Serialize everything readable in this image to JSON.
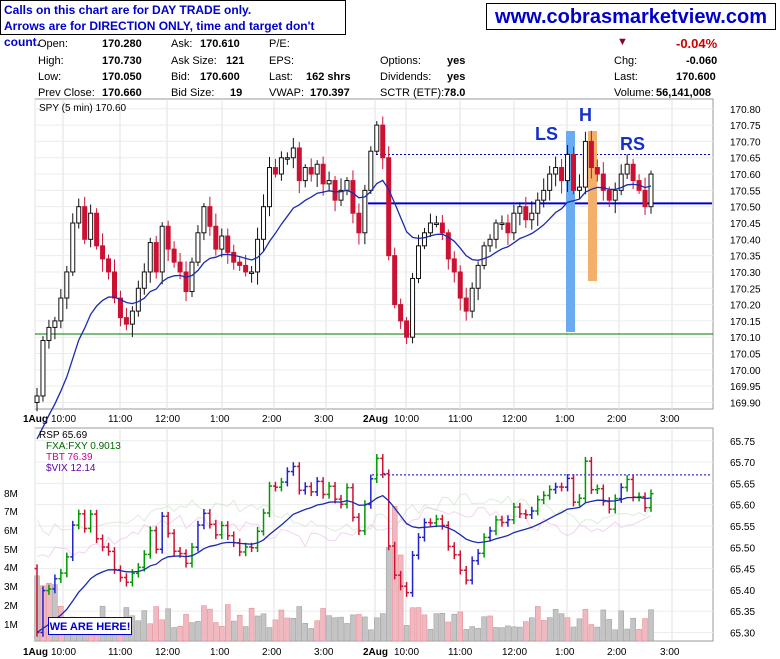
{
  "header": {
    "note_line1": "Calls on this chart are for DAY TRADE only.",
    "note_line2": "Arrows are for DIRECTION ONLY, time and target don't count.",
    "website": "www.cobrasmarketview.com"
  },
  "quote": {
    "open_label": "Open:",
    "open": "170.280",
    "high_label": "High:",
    "high": "170.730",
    "low_label": "Low:",
    "low": "170.050",
    "prev_close_label": "Prev Close:",
    "prev_close": "170.660",
    "ask_label": "Ask:",
    "ask": "170.610",
    "ask_size_label": "Ask Size:",
    "ask_size": "121",
    "bid_label": "Bid:",
    "bid": "170.600",
    "bid_size_label": "Bid Size:",
    "bid_size": "19",
    "pe_label": "P/E:",
    "eps_label": "EPS:",
    "last_label": "Last:",
    "last_shares": "162 shrs",
    "vwap_label": "VWAP:",
    "vwap": "170.397",
    "options_label": "Options:",
    "options": "yes",
    "dividends_label": "Dividends:",
    "dividends": "yes",
    "sctr_label": "SCTR (ETF):",
    "sctr": "78.0",
    "pct_change": "-0.04%",
    "chg_label": "Chg:",
    "chg": "-0.060",
    "last2_label": "Last:",
    "last": "170.600",
    "volume_label": "Volume:",
    "volume": "56,141,008"
  },
  "colors": {
    "up": "#111111",
    "down": "#cc1133",
    "ma": "#1a2bb0",
    "line_blue": "#0000cc",
    "support": "#007700",
    "ls_bar": "#6aaaf0",
    "h_bar": "#f3b06a"
  },
  "here_label": "WE ARE HERE!",
  "chart_data": [
    {
      "type": "candlestick",
      "title": "SPY (5 min) 170.60",
      "x_ticks": [
        "1Aug",
        "10:00",
        "11:00",
        "12:00",
        "1:00",
        "2:00",
        "3:00",
        "2Aug",
        "10:00",
        "11:00",
        "12:00",
        "1:00",
        "2:00",
        "3:00"
      ],
      "y_ticks": [
        170.8,
        170.75,
        170.7,
        170.65,
        170.6,
        170.55,
        170.5,
        170.45,
        170.4,
        170.35,
        170.3,
        170.25,
        170.2,
        170.15,
        170.1,
        170.05,
        170.0,
        169.95,
        169.9
      ],
      "ylim": [
        169.88,
        170.83
      ],
      "pattern_labels": [
        "LS",
        "H",
        "RS"
      ],
      "neckline": 170.51,
      "resistance": 170.66,
      "support": 170.11,
      "closes": [
        169.92,
        170.09,
        170.13,
        170.15,
        170.22,
        170.3,
        170.45,
        170.5,
        170.4,
        170.48,
        170.38,
        170.34,
        170.3,
        170.22,
        170.16,
        170.14,
        170.18,
        170.25,
        170.3,
        170.39,
        170.3,
        170.44,
        170.37,
        170.33,
        170.3,
        170.24,
        170.33,
        170.42,
        170.5,
        170.44,
        170.37,
        170.41,
        170.36,
        170.33,
        170.32,
        170.3,
        170.3,
        170.4,
        170.5,
        170.62,
        170.6,
        170.65,
        170.65,
        170.68,
        170.58,
        170.62,
        170.6,
        170.63,
        170.57,
        170.58,
        170.52,
        170.55,
        170.58,
        170.48,
        170.42,
        170.55,
        170.67,
        170.75,
        170.65,
        170.35,
        170.2,
        170.15,
        170.1,
        170.28,
        170.38,
        170.42,
        170.45,
        170.45,
        170.42,
        170.34,
        170.3,
        170.22,
        170.18,
        170.25,
        170.32,
        170.38,
        170.4,
        170.45,
        170.45,
        170.42,
        170.48,
        170.5,
        170.46,
        170.48,
        170.52,
        170.55,
        170.6,
        170.62,
        170.58,
        170.66,
        170.55,
        170.56,
        170.7,
        170.62,
        170.6,
        170.55,
        170.52,
        170.55,
        170.6,
        170.63,
        170.58,
        170.55,
        170.5,
        170.6
      ]
    },
    {
      "type": "candlestick",
      "title": "RSP 65.69",
      "legend": [
        "FXA:FXY 0.9013",
        "TBT 76.39",
        "$VIX 12.14"
      ],
      "x_ticks": [
        "1Aug",
        "10:00",
        "11:00",
        "12:00",
        "1:00",
        "2:00",
        "3:00",
        "2Aug",
        "10:00",
        "11:00",
        "12:00",
        "1:00",
        "2:00",
        "3:00"
      ],
      "y_ticks": [
        65.75,
        65.7,
        65.65,
        65.6,
        65.55,
        65.5,
        65.45,
        65.4,
        65.35,
        65.3
      ],
      "ylim": [
        65.28,
        65.78
      ],
      "reference": 65.67,
      "volume_ticks": [
        "8M",
        "7M",
        "6M",
        "5M",
        "4M",
        "3M",
        "2M",
        "1M"
      ]
    }
  ]
}
